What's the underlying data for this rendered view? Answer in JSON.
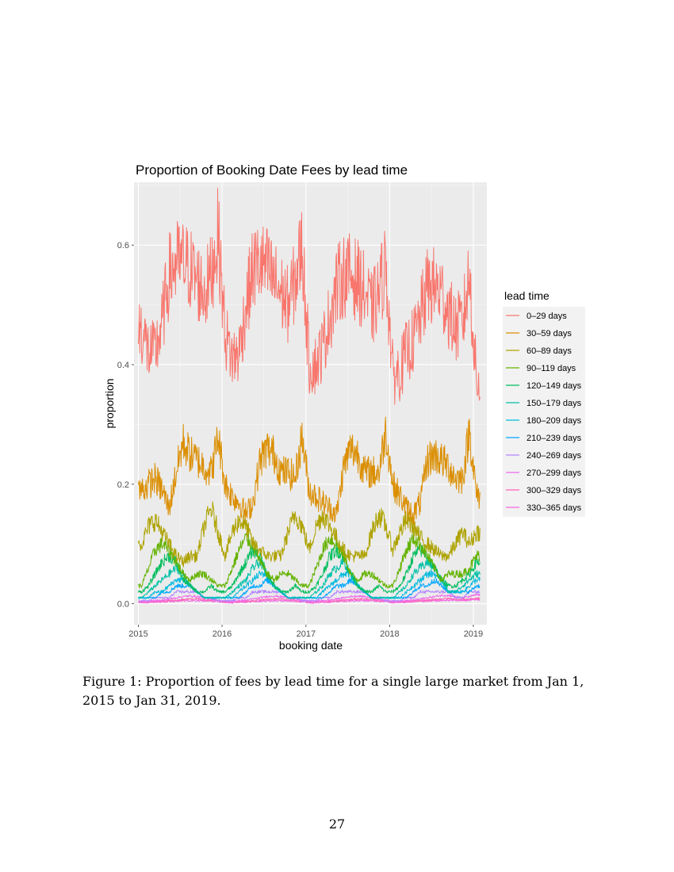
{
  "chart_data": {
    "type": "line",
    "title": "Proportion of Booking Date Fees by lead time",
    "xlabel": "booking date",
    "ylabel": "proportion",
    "xlim": [
      "2014-12-13",
      "2019-03-01"
    ],
    "ylim": [
      -0.035,
      0.705
    ],
    "x_ticks": [
      "2015",
      "2016",
      "2017",
      "2018",
      "2019"
    ],
    "x_tick_dates": [
      "2015-01-01",
      "2016-01-01",
      "2017-01-01",
      "2018-01-01",
      "2019-01-01"
    ],
    "y_ticks": [
      0.0,
      0.2,
      0.4,
      0.6
    ],
    "y_tick_labels": [
      "0.0",
      "0.2",
      "0.4",
      "0.6"
    ],
    "grid": true,
    "legend_title": "lead time",
    "legend_position": "right",
    "x_monthly": [
      "2015-01",
      "2015-02",
      "2015-03",
      "2015-04",
      "2015-05",
      "2015-06",
      "2015-07",
      "2015-08",
      "2015-09",
      "2015-10",
      "2015-11",
      "2015-12",
      "2016-01",
      "2016-02",
      "2016-03",
      "2016-04",
      "2016-05",
      "2016-06",
      "2016-07",
      "2016-08",
      "2016-09",
      "2016-10",
      "2016-11",
      "2016-12",
      "2017-01",
      "2017-02",
      "2017-03",
      "2017-04",
      "2017-05",
      "2017-06",
      "2017-07",
      "2017-08",
      "2017-09",
      "2017-10",
      "2017-11",
      "2017-12",
      "2018-01",
      "2018-02",
      "2018-03",
      "2018-04",
      "2018-05",
      "2018-06",
      "2018-07",
      "2018-08",
      "2018-09",
      "2018-10",
      "2018-11",
      "2018-12",
      "2019-01"
    ],
    "series": [
      {
        "name": "0–29 days",
        "color": "#F8766D",
        "values": [
          0.46,
          0.42,
          0.42,
          0.47,
          0.55,
          0.57,
          0.57,
          0.56,
          0.54,
          0.52,
          0.55,
          0.62,
          0.45,
          0.41,
          0.42,
          0.5,
          0.56,
          0.57,
          0.56,
          0.54,
          0.52,
          0.5,
          0.54,
          0.6,
          0.4,
          0.4,
          0.43,
          0.48,
          0.53,
          0.55,
          0.55,
          0.54,
          0.52,
          0.49,
          0.52,
          0.57,
          0.38,
          0.39,
          0.42,
          0.44,
          0.48,
          0.53,
          0.53,
          0.52,
          0.49,
          0.46,
          0.47,
          0.55,
          0.37
        ]
      },
      {
        "name": "30–59 days",
        "color": "#DB8E00",
        "values": [
          0.19,
          0.2,
          0.21,
          0.19,
          0.16,
          0.22,
          0.27,
          0.25,
          0.24,
          0.23,
          0.22,
          0.28,
          0.2,
          0.18,
          0.17,
          0.15,
          0.17,
          0.24,
          0.26,
          0.25,
          0.22,
          0.22,
          0.21,
          0.28,
          0.19,
          0.18,
          0.17,
          0.16,
          0.15,
          0.23,
          0.26,
          0.25,
          0.22,
          0.22,
          0.22,
          0.29,
          0.2,
          0.18,
          0.16,
          0.15,
          0.17,
          0.24,
          0.25,
          0.24,
          0.23,
          0.21,
          0.21,
          0.29,
          0.18
        ]
      },
      {
        "name": "60–89 days",
        "color": "#AEA200",
        "values": [
          0.1,
          0.13,
          0.14,
          0.12,
          0.1,
          0.08,
          0.07,
          0.08,
          0.08,
          0.13,
          0.16,
          0.12,
          0.08,
          0.12,
          0.14,
          0.13,
          0.1,
          0.09,
          0.08,
          0.08,
          0.08,
          0.12,
          0.15,
          0.13,
          0.09,
          0.13,
          0.15,
          0.13,
          0.11,
          0.09,
          0.08,
          0.08,
          0.08,
          0.12,
          0.15,
          0.13,
          0.09,
          0.12,
          0.14,
          0.13,
          0.11,
          0.1,
          0.09,
          0.08,
          0.08,
          0.1,
          0.12,
          0.1,
          0.12
        ]
      },
      {
        "name": "90–119 days",
        "color": "#64B200",
        "values": [
          0.03,
          0.06,
          0.09,
          0.1,
          0.09,
          0.07,
          0.05,
          0.04,
          0.05,
          0.05,
          0.04,
          0.03,
          0.03,
          0.06,
          0.09,
          0.11,
          0.1,
          0.07,
          0.05,
          0.04,
          0.05,
          0.05,
          0.04,
          0.03,
          0.03,
          0.06,
          0.09,
          0.11,
          0.1,
          0.08,
          0.05,
          0.04,
          0.05,
          0.05,
          0.04,
          0.03,
          0.03,
          0.06,
          0.09,
          0.11,
          0.1,
          0.08,
          0.06,
          0.04,
          0.05,
          0.05,
          0.05,
          0.06,
          0.08
        ]
      },
      {
        "name": "120–149 days",
        "color": "#00BD5C",
        "values": [
          0.02,
          0.03,
          0.05,
          0.07,
          0.08,
          0.07,
          0.04,
          0.03,
          0.02,
          0.02,
          0.03,
          0.02,
          0.02,
          0.03,
          0.05,
          0.07,
          0.09,
          0.08,
          0.05,
          0.03,
          0.02,
          0.02,
          0.03,
          0.02,
          0.02,
          0.03,
          0.05,
          0.08,
          0.09,
          0.08,
          0.05,
          0.03,
          0.02,
          0.02,
          0.03,
          0.02,
          0.02,
          0.03,
          0.05,
          0.08,
          0.09,
          0.08,
          0.06,
          0.04,
          0.03,
          0.03,
          0.04,
          0.05,
          0.07
        ]
      },
      {
        "name": "150–179 days",
        "color": "#00C1A7",
        "values": [
          0.01,
          0.02,
          0.03,
          0.04,
          0.05,
          0.06,
          0.05,
          0.03,
          0.02,
          0.01,
          0.01,
          0.01,
          0.01,
          0.02,
          0.03,
          0.04,
          0.06,
          0.07,
          0.05,
          0.03,
          0.02,
          0.01,
          0.01,
          0.01,
          0.01,
          0.02,
          0.03,
          0.05,
          0.06,
          0.07,
          0.05,
          0.03,
          0.02,
          0.01,
          0.01,
          0.01,
          0.01,
          0.02,
          0.03,
          0.05,
          0.06,
          0.07,
          0.06,
          0.04,
          0.02,
          0.02,
          0.03,
          0.04,
          0.05
        ]
      },
      {
        "name": "180–209 days",
        "color": "#00BADE",
        "values": [
          0.01,
          0.01,
          0.02,
          0.02,
          0.03,
          0.04,
          0.04,
          0.03,
          0.02,
          0.01,
          0.01,
          0.01,
          0.01,
          0.01,
          0.02,
          0.03,
          0.04,
          0.05,
          0.05,
          0.03,
          0.02,
          0.01,
          0.01,
          0.01,
          0.01,
          0.01,
          0.02,
          0.03,
          0.04,
          0.05,
          0.05,
          0.03,
          0.02,
          0.01,
          0.01,
          0.01,
          0.01,
          0.01,
          0.02,
          0.03,
          0.04,
          0.05,
          0.05,
          0.04,
          0.02,
          0.02,
          0.02,
          0.03,
          0.04
        ]
      },
      {
        "name": "210–239 days",
        "color": "#00A6FF",
        "values": [
          0.01,
          0.01,
          0.01,
          0.02,
          0.02,
          0.03,
          0.03,
          0.03,
          0.02,
          0.01,
          0.01,
          0.01,
          0.01,
          0.01,
          0.01,
          0.02,
          0.03,
          0.03,
          0.04,
          0.03,
          0.02,
          0.01,
          0.01,
          0.01,
          0.01,
          0.01,
          0.01,
          0.02,
          0.03,
          0.03,
          0.04,
          0.03,
          0.02,
          0.01,
          0.01,
          0.01,
          0.01,
          0.01,
          0.01,
          0.02,
          0.03,
          0.03,
          0.04,
          0.03,
          0.02,
          0.02,
          0.02,
          0.02,
          0.03
        ]
      },
      {
        "name": "240–269 days",
        "color": "#B385FF",
        "values": [
          0.005,
          0.005,
          0.01,
          0.01,
          0.01,
          0.02,
          0.02,
          0.02,
          0.02,
          0.01,
          0.01,
          0.005,
          0.005,
          0.005,
          0.01,
          0.01,
          0.02,
          0.02,
          0.02,
          0.02,
          0.02,
          0.01,
          0.01,
          0.005,
          0.005,
          0.005,
          0.01,
          0.01,
          0.02,
          0.02,
          0.02,
          0.02,
          0.02,
          0.01,
          0.01,
          0.005,
          0.005,
          0.005,
          0.01,
          0.01,
          0.02,
          0.02,
          0.02,
          0.02,
          0.02,
          0.01,
          0.01,
          0.02,
          0.02
        ]
      },
      {
        "name": "270–299 days",
        "color": "#EF67EB",
        "values": [
          0.004,
          0.004,
          0.005,
          0.006,
          0.008,
          0.01,
          0.012,
          0.013,
          0.012,
          0.01,
          0.008,
          0.006,
          0.004,
          0.004,
          0.005,
          0.006,
          0.008,
          0.01,
          0.012,
          0.013,
          0.012,
          0.01,
          0.008,
          0.006,
          0.004,
          0.004,
          0.005,
          0.006,
          0.008,
          0.01,
          0.012,
          0.013,
          0.012,
          0.01,
          0.008,
          0.006,
          0.004,
          0.004,
          0.005,
          0.006,
          0.008,
          0.01,
          0.012,
          0.014,
          0.014,
          0.012,
          0.01,
          0.012,
          0.015
        ]
      },
      {
        "name": "300–329 days",
        "color": "#FF63B6",
        "values": [
          0.003,
          0.003,
          0.004,
          0.004,
          0.005,
          0.006,
          0.007,
          0.008,
          0.008,
          0.007,
          0.006,
          0.005,
          0.003,
          0.003,
          0.004,
          0.004,
          0.005,
          0.006,
          0.007,
          0.008,
          0.008,
          0.007,
          0.006,
          0.005,
          0.003,
          0.003,
          0.004,
          0.004,
          0.005,
          0.006,
          0.007,
          0.008,
          0.008,
          0.007,
          0.006,
          0.005,
          0.003,
          0.003,
          0.004,
          0.004,
          0.005,
          0.006,
          0.007,
          0.008,
          0.009,
          0.008,
          0.007,
          0.008,
          0.009
        ]
      },
      {
        "name": "330–365 days",
        "color": "#F564E3",
        "values": [
          0.002,
          0.002,
          0.003,
          0.003,
          0.004,
          0.004,
          0.005,
          0.005,
          0.005,
          0.005,
          0.004,
          0.004,
          0.002,
          0.002,
          0.003,
          0.003,
          0.004,
          0.004,
          0.005,
          0.005,
          0.005,
          0.005,
          0.004,
          0.004,
          0.002,
          0.002,
          0.003,
          0.003,
          0.004,
          0.004,
          0.005,
          0.005,
          0.005,
          0.005,
          0.004,
          0.004,
          0.002,
          0.002,
          0.003,
          0.003,
          0.004,
          0.004,
          0.005,
          0.005,
          0.006,
          0.006,
          0.005,
          0.006,
          0.007
        ]
      }
    ]
  },
  "caption": "Figure 1: Proportion of fees by lead time for a single large market from Jan 1, 2015 to Jan 31, 2019.",
  "page_number": "27"
}
